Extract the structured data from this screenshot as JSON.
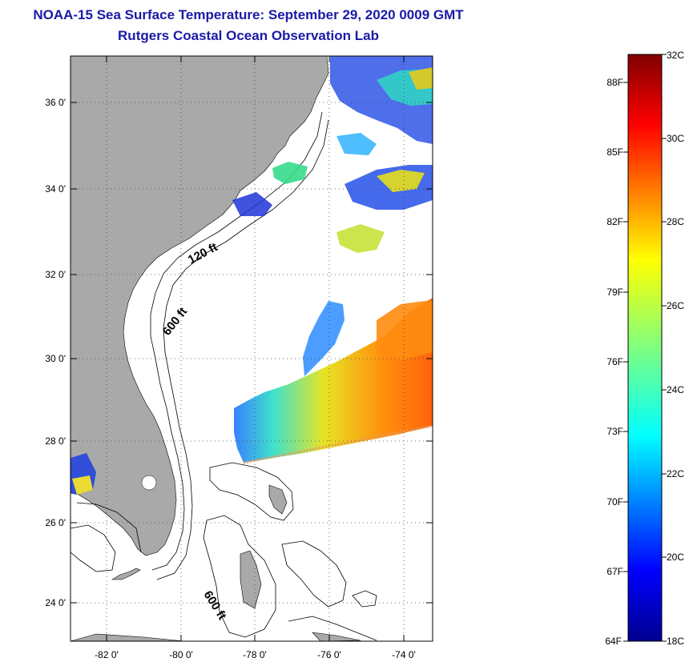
{
  "title": {
    "line1": "NOAA-15 Sea Surface Temperature:  September 29, 2020 0009 GMT",
    "line2": "Rutgers Coastal Ocean Observation Lab"
  },
  "colors": {
    "title": "#1a1aa6",
    "land": "#a9a9a9",
    "ocean_no_data": "#ffffff",
    "contour": "#000000"
  },
  "map": {
    "lat_labels": [
      "36 0'",
      "34 0'",
      "32 0'",
      "30 0'",
      "28 0'",
      "26 0'",
      "24 0'"
    ],
    "lon_labels": [
      "-82 0'",
      "-80 0'",
      "-78 0'",
      "-76 0'",
      "-74 0'"
    ],
    "grid": "dotted",
    "contour_labels": [
      "120 ft",
      "600 ft",
      "600 ft"
    ]
  },
  "colorbar": {
    "celsius_labels": [
      "32C",
      "30C",
      "28C",
      "26C",
      "24C",
      "22C",
      "20C",
      "18C"
    ],
    "fahrenheit_labels": [
      "88F",
      "85F",
      "82F",
      "79F",
      "76F",
      "73F",
      "70F",
      "67F",
      "64F"
    ],
    "scale": "jet",
    "min_c": 18,
    "max_c": 32
  },
  "icons": {
    "coastline": "coastline-outline",
    "bathymetry": "bathymetry-contour"
  }
}
